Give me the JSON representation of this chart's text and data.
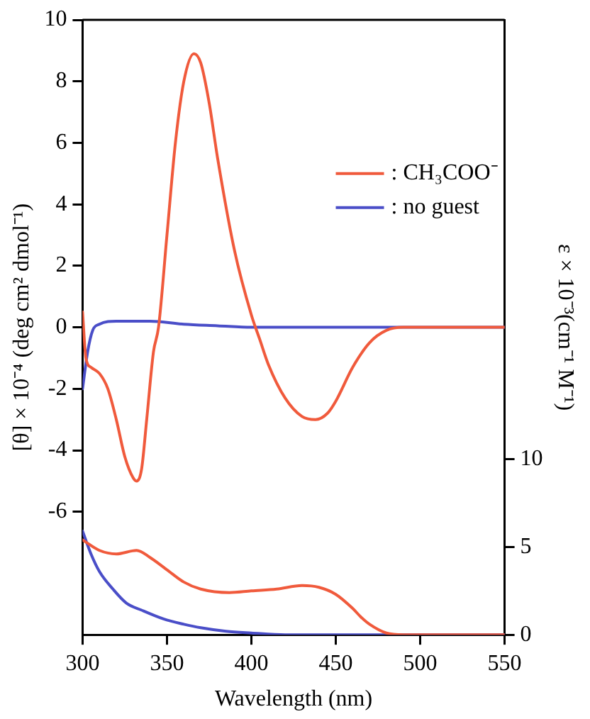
{
  "chart_data": {
    "type": "line",
    "xlabel": "Wavelength (nm)",
    "ylabel": "[θ] × 10⁻⁴ (deg cm² dmol⁻¹)",
    "y2label": "ε × 10⁻³(cm⁻¹ M⁻¹)",
    "xlim": [
      300,
      550
    ],
    "xticks": [
      300,
      350,
      400,
      450,
      500,
      550
    ],
    "ylim": [
      -10,
      10
    ],
    "yticks": [
      -6,
      -4,
      -2,
      0,
      2,
      4,
      6,
      8,
      10
    ],
    "y2lim": [
      0,
      35
    ],
    "y2ticks": [
      0,
      5,
      10
    ],
    "grid": false,
    "legend": "right",
    "marker": "none",
    "line_style": "solid",
    "series": [
      {
        "name": ": CH₃COO⁻",
        "color": "#f05a3c",
        "x": [
          300,
          302,
          305,
          310,
          315,
          320,
          325,
          330,
          332,
          335,
          338,
          342,
          345,
          350,
          355,
          360,
          366,
          370,
          375,
          380,
          390,
          400,
          405,
          410,
          420,
          430,
          438,
          445,
          450,
          460,
          470,
          480,
          490,
          500,
          550
        ],
        "values": [
          0.5,
          -1.0,
          -1.3,
          -1.5,
          -2.0,
          -3.0,
          -4.2,
          -4.9,
          -5.0,
          -4.6,
          -3.0,
          -0.8,
          0,
          3.0,
          6.0,
          8.0,
          8.9,
          8.6,
          7.3,
          5.5,
          2.5,
          0.4,
          -0.4,
          -1.2,
          -2.3,
          -2.9,
          -3.0,
          -2.8,
          -2.4,
          -1.3,
          -0.5,
          -0.1,
          0,
          0,
          0
        ]
      },
      {
        "name": ": no guest",
        "color": "#4a4ec8",
        "x": [
          300,
          303,
          306,
          310,
          320,
          340,
          360,
          380,
          400,
          550
        ],
        "values": [
          -2.0,
          -0.8,
          -0.1,
          0.1,
          0.2,
          0.2,
          0.1,
          0.05,
          0,
          0
        ]
      },
      {
        "color": "#f05a3c",
        "axis": "y2",
        "x": [
          300,
          310,
          320,
          332,
          340,
          350,
          360,
          370,
          387,
          400,
          415,
          430,
          440,
          450,
          460,
          465,
          470,
          480,
          490,
          550
        ],
        "values": [
          5.4,
          4.8,
          4.6,
          4.8,
          4.4,
          3.7,
          3.0,
          2.6,
          2.4,
          2.5,
          2.6,
          2.8,
          2.7,
          2.3,
          1.5,
          1.0,
          0.6,
          0.1,
          0,
          0
        ]
      },
      {
        "color": "#4a4ec8",
        "axis": "y2",
        "x": [
          300,
          305,
          310,
          318,
          326,
          335,
          348,
          360,
          370,
          385,
          400,
          420,
          450,
          550
        ],
        "values": [
          5.9,
          4.6,
          3.6,
          2.6,
          1.8,
          1.4,
          0.9,
          0.6,
          0.4,
          0.2,
          0.1,
          0,
          0,
          0
        ]
      }
    ]
  }
}
